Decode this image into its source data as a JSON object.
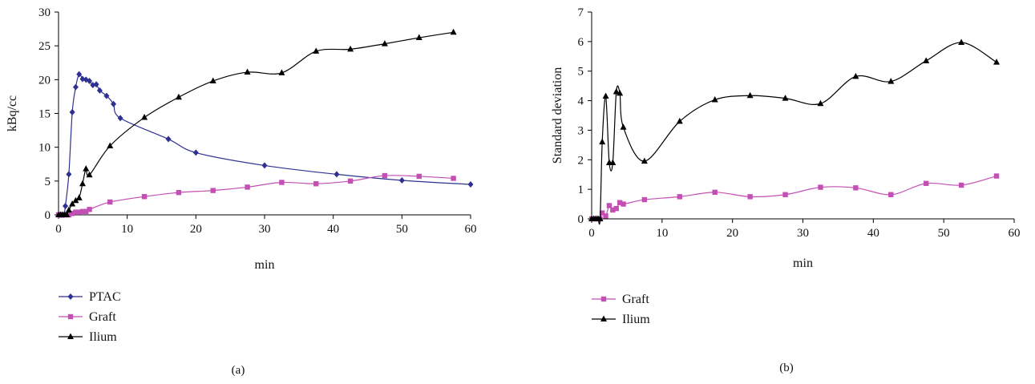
{
  "colors": {
    "ptac": "#2e3192",
    "graft": "#c44fb4",
    "ilium": "#000000"
  },
  "chart_data": [
    {
      "type": "line",
      "panel_label": "(a)",
      "xlabel": "min",
      "ylabel": "kBq/cc",
      "xlim": [
        0,
        60
      ],
      "ylim": [
        0,
        30
      ],
      "xticks": [
        "0",
        "10",
        "20",
        "30",
        "40",
        "50",
        "60"
      ],
      "yticks": [
        "0",
        "5",
        "10",
        "15",
        "20",
        "25",
        "30"
      ],
      "legend_position": "bottom-left",
      "series": [
        {
          "name": "PTAC",
          "color": "#2e3192",
          "marker": "diamond",
          "x": [
            0,
            0.2,
            0.4,
            0.6,
            0.8,
            1.0,
            1.5,
            2.0,
            2.5,
            3.0,
            3.5,
            4.0,
            4.5,
            5.0,
            5.5,
            6.0,
            7.0,
            8.0,
            9.0,
            16,
            20,
            30,
            40.5,
            50,
            60
          ],
          "y": [
            0,
            0,
            0,
            0,
            0,
            1.3,
            6.0,
            15.2,
            18.9,
            20.8,
            20.1,
            20.0,
            19.8,
            19.2,
            19.3,
            18.4,
            17.6,
            16.4,
            14.3,
            11.2,
            9.2,
            7.3,
            6.0,
            5.1,
            4.5
          ]
        },
        {
          "name": "Graft",
          "color": "#c44fb4",
          "marker": "square",
          "x": [
            0,
            0.3,
            0.6,
            0.9,
            1.2,
            1.5,
            2.0,
            2.5,
            3.0,
            3.5,
            4.0,
            4.5,
            7.5,
            12.5,
            17.5,
            22.5,
            27.5,
            32.5,
            37.5,
            42.5,
            47.5,
            52.5,
            57.5
          ],
          "y": [
            0,
            0,
            0,
            0,
            0,
            0,
            0.2,
            0.4,
            0.4,
            0.5,
            0.5,
            0.8,
            1.9,
            2.7,
            3.3,
            3.6,
            4.1,
            4.8,
            4.6,
            5.0,
            5.8,
            5.7,
            5.4
          ]
        },
        {
          "name": "Ilium",
          "color": "#000000",
          "marker": "triangle",
          "x": [
            0,
            0.3,
            0.6,
            0.9,
            1.2,
            1.5,
            2.0,
            2.5,
            3.0,
            3.5,
            4.0,
            4.5,
            7.5,
            12.5,
            17.5,
            22.5,
            27.5,
            32.5,
            37.5,
            42.5,
            47.5,
            52.5,
            57.5
          ],
          "y": [
            0,
            0,
            0,
            0,
            0,
            0.7,
            1.6,
            2.1,
            2.5,
            4.6,
            6.8,
            5.9,
            10.2,
            14.4,
            17.4,
            19.8,
            21.1,
            21.0,
            24.2,
            24.5,
            25.3,
            26.2,
            27.0
          ]
        }
      ]
    },
    {
      "type": "line",
      "panel_label": "(b)",
      "xlabel": "min",
      "ylabel": "Standard deviation",
      "xlim": [
        0,
        60
      ],
      "ylim": [
        0,
        7
      ],
      "xticks": [
        "0",
        "10",
        "20",
        "30",
        "40",
        "50",
        "60"
      ],
      "yticks": [
        "0",
        "1",
        "2",
        "3",
        "4",
        "5",
        "6",
        "7"
      ],
      "legend_position": "bottom-left",
      "series": [
        {
          "name": "Graft",
          "color": "#c44fb4",
          "marker": "square",
          "x": [
            0,
            0.3,
            0.6,
            0.9,
            1.2,
            1.5,
            2.0,
            2.5,
            3.0,
            3.5,
            4.0,
            4.5,
            7.5,
            12.5,
            17.5,
            22.5,
            27.5,
            32.5,
            37.5,
            42.5,
            47.5,
            52.5,
            57.5
          ],
          "y": [
            0,
            0,
            0,
            0,
            0,
            0.2,
            0.1,
            0.45,
            0.3,
            0.35,
            0.55,
            0.5,
            0.65,
            0.75,
            0.9,
            0.75,
            0.82,
            1.07,
            1.05,
            0.82,
            1.2,
            1.14,
            1.45
          ]
        },
        {
          "name": "Ilium",
          "color": "#000000",
          "marker": "triangle",
          "x": [
            0,
            0.3,
            0.6,
            0.9,
            1.2,
            1.5,
            2.0,
            2.5,
            3.0,
            3.5,
            4.0,
            4.5,
            7.5,
            12.5,
            17.5,
            22.5,
            27.5,
            32.5,
            37.5,
            42.5,
            47.5,
            52.5,
            57.5
          ],
          "y": [
            0,
            0,
            0,
            0,
            0,
            2.6,
            4.15,
            1.9,
            1.9,
            4.3,
            4.25,
            3.1,
            1.95,
            3.3,
            4.03,
            4.17,
            4.08,
            3.9,
            4.82,
            4.65,
            5.35,
            5.97,
            5.3
          ]
        }
      ]
    }
  ]
}
